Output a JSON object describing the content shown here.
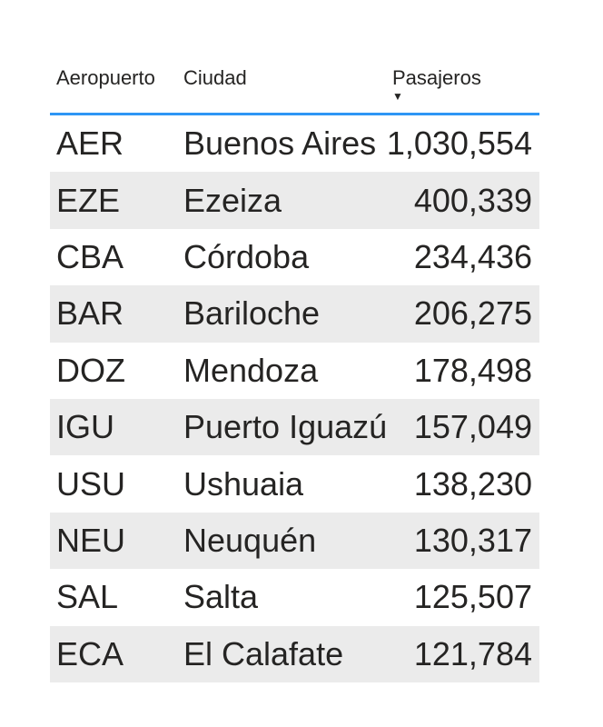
{
  "chart_data": {
    "type": "table",
    "sorted_by": "Pasajeros",
    "sort_direction": "descending",
    "columns": [
      {
        "label": "Aeropuerto",
        "align": "left"
      },
      {
        "label": "Ciudad",
        "align": "left"
      },
      {
        "label": "Pasajeros",
        "align": "right",
        "sort": "descending"
      }
    ],
    "rows": [
      {
        "aeropuerto": "AER",
        "ciudad": "Buenos Aires",
        "pasajeros": "1,030,554",
        "pasajeros_value": 1030554
      },
      {
        "aeropuerto": "EZE",
        "ciudad": "Ezeiza",
        "pasajeros": "400,339",
        "pasajeros_value": 400339
      },
      {
        "aeropuerto": "CBA",
        "ciudad": "Córdoba",
        "pasajeros": "234,436",
        "pasajeros_value": 234436
      },
      {
        "aeropuerto": "BAR",
        "ciudad": "Bariloche",
        "pasajeros": "206,275",
        "pasajeros_value": 206275
      },
      {
        "aeropuerto": "DOZ",
        "ciudad": "Mendoza",
        "pasajeros": "178,498",
        "pasajeros_value": 178498
      },
      {
        "aeropuerto": "IGU",
        "ciudad": "Puerto Iguazú",
        "pasajeros": "157,049",
        "pasajeros_value": 157049
      },
      {
        "aeropuerto": "USU",
        "ciudad": "Ushuaia",
        "pasajeros": "138,230",
        "pasajeros_value": 138230
      },
      {
        "aeropuerto": "NEU",
        "ciudad": "Neuquén",
        "pasajeros": "130,317",
        "pasajeros_value": 130317
      },
      {
        "aeropuerto": "SAL",
        "ciudad": "Salta",
        "pasajeros": "125,507",
        "pasajeros_value": 125507
      },
      {
        "aeropuerto": "ECA",
        "ciudad": "El Calafate",
        "pasajeros": "121,784",
        "pasajeros_value": 121784
      }
    ]
  },
  "icons": {
    "sort_descending": "▼"
  },
  "colors": {
    "header_underline": "#2e96f5",
    "banded_row": "#ebebeb",
    "text": "#252423",
    "background": "#ffffff"
  }
}
